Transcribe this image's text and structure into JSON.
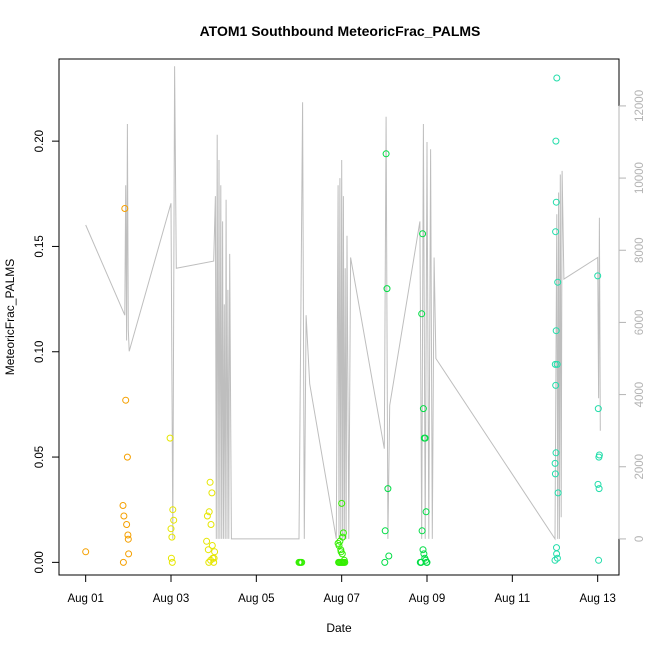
{
  "chart_data": {
    "type": "scatter",
    "title": "ATOM1 Southbound MeteoricFrac_PALMS",
    "xlabel": "Date",
    "ylabel": "MeteoricFrac_PALMS",
    "x_domain": [
      "2016-08-01",
      "2016-08-13"
    ],
    "xlim": [
      "2016-07-31T09:00",
      "2016-08-13T12:00"
    ],
    "ylim": [
      -0.006,
      0.239
    ],
    "y2lim": [
      -1000,
      13300
    ],
    "x_ticks": [
      {
        "date": "2016-08-01",
        "label": "Aug 01"
      },
      {
        "date": "2016-08-03",
        "label": "Aug 03"
      },
      {
        "date": "2016-08-05",
        "label": "Aug 05"
      },
      {
        "date": "2016-08-07",
        "label": "Aug 07"
      },
      {
        "date": "2016-08-09",
        "label": "Aug 09"
      },
      {
        "date": "2016-08-11",
        "label": "Aug 11"
      },
      {
        "date": "2016-08-13",
        "label": "Aug 13"
      }
    ],
    "y_ticks": [
      {
        "value": 0.0,
        "label": "0.00"
      },
      {
        "value": 0.05,
        "label": "0.05"
      },
      {
        "value": 0.1,
        "label": "0.10"
      },
      {
        "value": 0.15,
        "label": "0.15"
      },
      {
        "value": 0.2,
        "label": "0.20"
      }
    ],
    "y2_ticks": [
      {
        "value": 0,
        "label": "0"
      },
      {
        "value": 2000,
        "label": "2000"
      },
      {
        "value": 4000,
        "label": "4000"
      },
      {
        "value": 6000,
        "label": "6000"
      },
      {
        "value": 8000,
        "label": "8000"
      },
      {
        "value": 10000,
        "label": "10000"
      },
      {
        "value": 12000,
        "label": "12000"
      }
    ],
    "altitude_color": "#bebebe",
    "grid": false,
    "altitude_track": [
      [
        "2016-08-01T00:00",
        8700
      ],
      [
        "2016-08-01T22:00",
        6200
      ],
      [
        "2016-08-01T22:30",
        9800
      ],
      [
        "2016-08-01T23:00",
        5500
      ],
      [
        "2016-08-01T23:30",
        11500
      ],
      [
        "2016-08-02T00:00",
        5800
      ],
      [
        "2016-08-02T00:30",
        5200
      ],
      [
        "2016-08-03T00:00",
        9300
      ],
      [
        "2016-08-03T01:00",
        0
      ],
      [
        "2016-08-03T02:00",
        13100
      ],
      [
        "2016-08-03T03:00",
        7500
      ],
      [
        "2016-08-04T00:00",
        7700
      ],
      [
        "2016-08-04T01:00",
        9500
      ],
      [
        "2016-08-04T01:30",
        0
      ],
      [
        "2016-08-04T02:00",
        11200
      ],
      [
        "2016-08-04T02:30",
        0
      ],
      [
        "2016-08-04T03:00",
        10500
      ],
      [
        "2016-08-04T03:30",
        0
      ],
      [
        "2016-08-04T04:00",
        9800
      ],
      [
        "2016-08-04T04:30",
        0
      ],
      [
        "2016-08-04T05:00",
        8800
      ],
      [
        "2016-08-04T05:30",
        0
      ],
      [
        "2016-08-04T06:00",
        6500
      ],
      [
        "2016-08-04T06:30",
        0
      ],
      [
        "2016-08-04T07:00",
        9400
      ],
      [
        "2016-08-04T07:30",
        0
      ],
      [
        "2016-08-04T08:00",
        6900
      ],
      [
        "2016-08-04T08:30",
        0
      ],
      [
        "2016-08-04T09:00",
        7900
      ],
      [
        "2016-08-04T10:00",
        0
      ],
      [
        "2016-08-06T00:00",
        0
      ],
      [
        "2016-08-06T02:00",
        12100
      ],
      [
        "2016-08-06T03:00",
        0
      ],
      [
        "2016-08-06T04:00",
        6200
      ],
      [
        "2016-08-06T06:00",
        4300
      ],
      [
        "2016-08-06T21:00",
        0
      ],
      [
        "2016-08-06T22:00",
        9800
      ],
      [
        "2016-08-06T22:30",
        0
      ],
      [
        "2016-08-06T23:00",
        10000
      ],
      [
        "2016-08-06T23:30",
        0
      ],
      [
        "2016-08-07T00:00",
        10500
      ],
      [
        "2016-08-07T00:30",
        0
      ],
      [
        "2016-08-07T01:00",
        9500
      ],
      [
        "2016-08-07T01:30",
        0
      ],
      [
        "2016-08-07T02:00",
        7500
      ],
      [
        "2016-08-07T02:30",
        0
      ],
      [
        "2016-08-07T03:00",
        8400
      ],
      [
        "2016-08-07T04:00",
        0
      ],
      [
        "2016-08-07T05:00",
        7800
      ],
      [
        "2016-08-08T00:00",
        2500
      ],
      [
        "2016-08-08T01:00",
        11700
      ],
      [
        "2016-08-08T02:00",
        0
      ],
      [
        "2016-08-08T03:00",
        3700
      ],
      [
        "2016-08-08T20:00",
        8800
      ],
      [
        "2016-08-08T21:00",
        0
      ],
      [
        "2016-08-08T22:00",
        11500
      ],
      [
        "2016-08-08T23:00",
        0
      ],
      [
        "2016-08-09T00:00",
        11000
      ],
      [
        "2016-08-09T01:00",
        0
      ],
      [
        "2016-08-09T02:00",
        10800
      ],
      [
        "2016-08-09T03:00",
        0
      ],
      [
        "2016-08-09T04:00",
        7800
      ],
      [
        "2016-08-09T05:00",
        5000
      ],
      [
        "2016-08-12T00:00",
        0
      ],
      [
        "2016-08-12T01:00",
        9000
      ],
      [
        "2016-08-12T01:30",
        0
      ],
      [
        "2016-08-12T02:00",
        9600
      ],
      [
        "2016-08-12T02:30",
        0
      ],
      [
        "2016-08-12T03:00",
        10100
      ],
      [
        "2016-08-12T03:30",
        600
      ],
      [
        "2016-08-12T04:00",
        10200
      ],
      [
        "2016-08-12T05:00",
        7200
      ],
      [
        "2016-08-13T00:00",
        7800
      ],
      [
        "2016-08-13T00:30",
        3900
      ],
      [
        "2016-08-13T01:00",
        8900
      ],
      [
        "2016-08-13T01:30",
        3000
      ]
    ],
    "series": [
      {
        "color": "#f5a000",
        "points": [
          [
            "2016-08-01T00:00",
            0.005
          ],
          [
            "2016-08-01T21:00",
            0.027
          ],
          [
            "2016-08-01T21:30",
            0.022
          ],
          [
            "2016-08-01T22:00",
            0.168
          ],
          [
            "2016-08-01T22:30",
            0.077
          ],
          [
            "2016-08-01T23:00",
            0.018
          ],
          [
            "2016-08-01T23:30",
            0.05
          ],
          [
            "2016-08-01T23:45",
            0.013
          ],
          [
            "2016-08-02T00:00",
            0.011
          ],
          [
            "2016-08-01T21:15",
            0.0
          ],
          [
            "2016-08-02T00:10",
            0.004
          ]
        ]
      },
      {
        "color": "#e6e600",
        "points": [
          [
            "2016-08-02T23:30",
            0.059
          ],
          [
            "2016-08-03T00:00",
            0.016
          ],
          [
            "2016-08-03T00:30",
            0.012
          ],
          [
            "2016-08-03T01:00",
            0.025
          ],
          [
            "2016-08-03T01:30",
            0.02
          ],
          [
            "2016-08-03T00:15",
            0.002
          ],
          [
            "2016-08-03T00:45",
            0.0
          ],
          [
            "2016-08-03T20:00",
            0.01
          ],
          [
            "2016-08-03T20:30",
            0.022
          ],
          [
            "2016-08-03T21:00",
            0.006
          ],
          [
            "2016-08-03T21:30",
            0.024
          ],
          [
            "2016-08-03T22:00",
            0.038
          ],
          [
            "2016-08-03T22:30",
            0.018
          ],
          [
            "2016-08-03T23:00",
            0.033
          ],
          [
            "2016-08-03T23:30",
            0.002
          ],
          [
            "2016-08-04T00:00",
            0.0
          ],
          [
            "2016-08-04T00:30",
            0.005
          ],
          [
            "2016-08-03T21:15",
            0.0
          ],
          [
            "2016-08-03T22:15",
            0.001
          ],
          [
            "2016-08-03T23:15",
            0.008
          ],
          [
            "2016-08-04T00:15",
            0.002
          ]
        ]
      },
      {
        "color": "#33ee00",
        "points": [
          [
            "2016-08-06T00:00",
            0.0
          ],
          [
            "2016-08-06T00:30",
            0.0
          ],
          [
            "2016-08-06T01:00",
            0.0
          ],
          [
            "2016-08-06T01:30",
            0.0
          ],
          [
            "2016-08-06T22:00",
            0.009
          ],
          [
            "2016-08-06T22:30",
            0.008
          ],
          [
            "2016-08-06T23:00",
            0.01
          ],
          [
            "2016-08-06T23:30",
            0.006
          ],
          [
            "2016-08-07T00:00",
            0.028
          ],
          [
            "2016-08-07T00:30",
            0.012
          ],
          [
            "2016-08-07T01:00",
            0.014
          ],
          [
            "2016-08-07T01:30",
            0.001
          ],
          [
            "2016-08-06T22:15",
            0.0
          ],
          [
            "2016-08-06T22:45",
            0.0
          ],
          [
            "2016-08-06T23:15",
            0.0
          ],
          [
            "2016-08-06T23:45",
            0.0
          ],
          [
            "2016-08-07T00:15",
            0.0
          ],
          [
            "2016-08-07T00:45",
            0.0
          ],
          [
            "2016-08-07T01:15",
            0.0
          ],
          [
            "2016-08-07T01:45",
            0.0
          ],
          [
            "2016-08-07T00:20",
            0.004
          ],
          [
            "2016-08-06T23:40",
            0.005
          ]
        ]
      },
      {
        "color": "#00dd44",
        "points": [
          [
            "2016-08-08T01:00",
            0.194
          ],
          [
            "2016-08-08T01:30",
            0.13
          ],
          [
            "2016-08-08T02:00",
            0.035
          ],
          [
            "2016-08-08T00:30",
            0.015
          ],
          [
            "2016-08-08T02:30",
            0.003
          ],
          [
            "2016-08-08T00:15",
            0.0
          ],
          [
            "2016-08-08T21:00",
            0.118
          ],
          [
            "2016-08-08T21:30",
            0.156
          ],
          [
            "2016-08-08T22:00",
            0.073
          ],
          [
            "2016-08-08T22:30",
            0.059
          ],
          [
            "2016-08-08T23:00",
            0.059
          ],
          [
            "2016-08-08T23:30",
            0.024
          ],
          [
            "2016-08-08T21:15",
            0.015
          ],
          [
            "2016-08-08T21:45",
            0.006
          ],
          [
            "2016-08-08T22:15",
            0.004
          ],
          [
            "2016-08-08T22:45",
            0.002
          ],
          [
            "2016-08-08T23:15",
            0.001
          ],
          [
            "2016-08-08T23:45",
            0.0
          ],
          [
            "2016-08-08T20:30",
            0.0
          ],
          [
            "2016-08-08T20:45",
            0.0
          ],
          [
            "2016-08-08T20:15",
            0.0
          ],
          [
            "2016-08-09T00:00",
            0.0
          ]
        ]
      },
      {
        "color": "#22ddaa",
        "points": [
          [
            "2016-08-12T01:00",
            0.23
          ],
          [
            "2016-08-12T00:30",
            0.2
          ],
          [
            "2016-08-12T00:45",
            0.171
          ],
          [
            "2016-08-12T00:20",
            0.157
          ],
          [
            "2016-08-12T01:30",
            0.133
          ],
          [
            "2016-08-12T00:40",
            0.11
          ],
          [
            "2016-08-12T00:10",
            0.094
          ],
          [
            "2016-08-12T01:15",
            0.094
          ],
          [
            "2016-08-12T00:25",
            0.084
          ],
          [
            "2016-08-12T00:35",
            0.052
          ],
          [
            "2016-08-12T00:05",
            0.047
          ],
          [
            "2016-08-12T00:15",
            0.042
          ],
          [
            "2016-08-12T01:45",
            0.033
          ],
          [
            "2016-08-12T00:50",
            0.007
          ],
          [
            "2016-08-12T00:55",
            0.004
          ],
          [
            "2016-08-12T01:20",
            0.002
          ],
          [
            "2016-08-12T00:00",
            0.001
          ],
          [
            "2016-08-13T00:00",
            0.136
          ],
          [
            "2016-08-13T00:20",
            0.073
          ],
          [
            "2016-08-13T00:40",
            0.05
          ],
          [
            "2016-08-13T01:00",
            0.051
          ],
          [
            "2016-08-13T00:10",
            0.037
          ],
          [
            "2016-08-13T00:50",
            0.035
          ],
          [
            "2016-08-13T00:30",
            0.001
          ]
        ]
      }
    ]
  }
}
